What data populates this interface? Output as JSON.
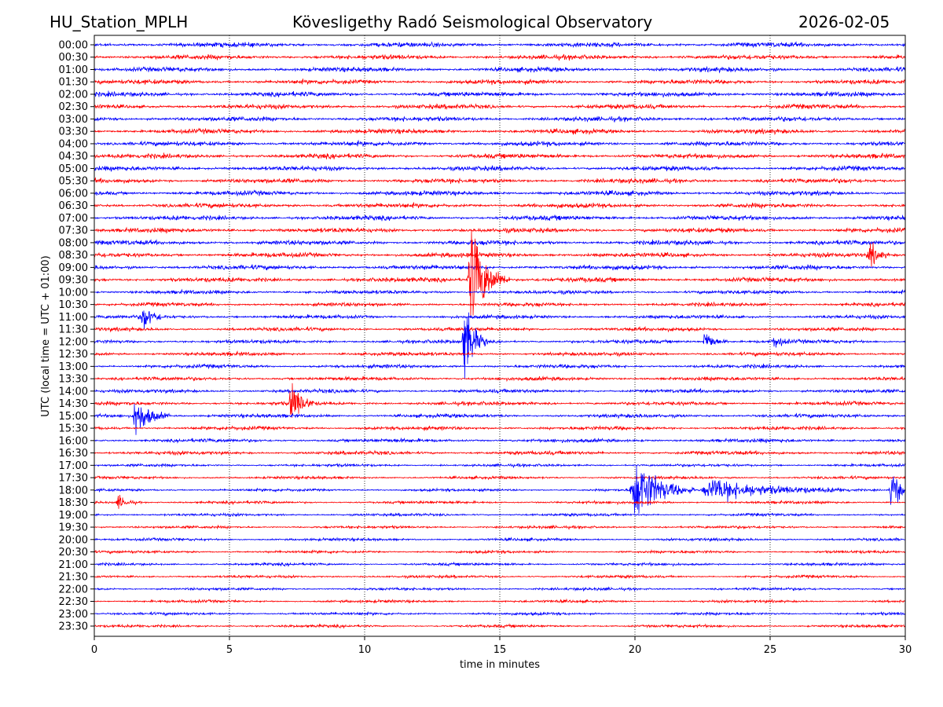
{
  "header": {
    "station": "HU_Station_MPLH",
    "title": "Kövesligethy Radó Seismological Observatory",
    "date": "2026-02-05"
  },
  "chart_data": {
    "type": "line",
    "subtype": "helicorder",
    "xlabel": "time in minutes",
    "ylabel": "UTC (local time = UTC + 01:00)",
    "xlim": [
      0,
      30
    ],
    "xticks": [
      "0",
      "5",
      "10",
      "15",
      "20",
      "25",
      "30"
    ],
    "grid": "vertical dotted at each 5 minutes",
    "row_colors": [
      "#0000ff",
      "#ff0000"
    ],
    "rows": [
      "00:00",
      "00:30",
      "01:00",
      "01:30",
      "02:00",
      "02:30",
      "03:00",
      "03:30",
      "04:00",
      "04:30",
      "05:00",
      "05:30",
      "06:00",
      "06:30",
      "07:00",
      "07:30",
      "08:00",
      "08:30",
      "09:00",
      "09:30",
      "10:00",
      "10:30",
      "11:00",
      "11:30",
      "12:00",
      "12:30",
      "13:00",
      "13:30",
      "14:00",
      "14:30",
      "15:00",
      "15:30",
      "16:00",
      "16:30",
      "17:00",
      "17:30",
      "18:00",
      "18:30",
      "19:00",
      "19:30",
      "20:00",
      "20:30",
      "21:00",
      "21:30",
      "22:00",
      "22:30",
      "23:00",
      "23:30"
    ],
    "events": [
      {
        "row": "08:30",
        "start_min": 28.6,
        "duration_min": 0.5,
        "relative_amplitude": 3
      },
      {
        "row": "09:30",
        "start_min": 13.8,
        "duration_min": 1.0,
        "relative_amplitude": 12
      },
      {
        "row": "11:00",
        "start_min": 1.7,
        "duration_min": 0.6,
        "relative_amplitude": 3
      },
      {
        "row": "12:00",
        "start_min": 13.6,
        "duration_min": 0.6,
        "relative_amplitude": 9
      },
      {
        "row": "12:00",
        "start_min": 22.5,
        "duration_min": 0.6,
        "relative_amplitude": 2.5
      },
      {
        "row": "12:00",
        "start_min": 25.1,
        "duration_min": 0.4,
        "relative_amplitude": 2
      },
      {
        "row": "14:30",
        "start_min": 7.2,
        "duration_min": 0.6,
        "relative_amplitude": 5
      },
      {
        "row": "15:00",
        "start_min": 1.4,
        "duration_min": 0.9,
        "relative_amplitude": 4.5
      },
      {
        "row": "18:00",
        "start_min": 19.8,
        "duration_min": 1.5,
        "relative_amplitude": 7
      },
      {
        "row": "18:00",
        "start_min": 22.4,
        "duration_min": 3.5,
        "relative_amplitude": 2.5
      },
      {
        "row": "18:00",
        "start_min": 29.4,
        "duration_min": 0.6,
        "relative_amplitude": 5
      },
      {
        "row": "18:30",
        "start_min": 0.8,
        "duration_min": 0.6,
        "relative_amplitude": 1.5
      }
    ]
  }
}
